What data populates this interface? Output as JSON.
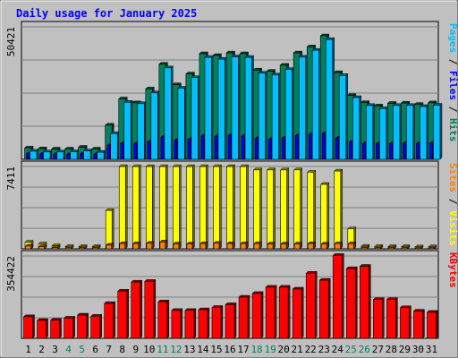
{
  "chart_data": {
    "type": "bar",
    "title": "Daily usage for January 2025",
    "categories": [
      "1",
      "2",
      "3",
      "4",
      "5",
      "6",
      "7",
      "8",
      "9",
      "10",
      "11",
      "12",
      "13",
      "14",
      "15",
      "16",
      "17",
      "18",
      "19",
      "20",
      "21",
      "22",
      "23",
      "24",
      "25",
      "26",
      "27",
      "28",
      "29",
      "30",
      "31"
    ],
    "weekend_days": [
      4,
      5,
      11,
      12,
      18,
      19,
      25,
      26
    ],
    "panels": [
      {
        "id": "hits-files-pages",
        "scale_label": "50421",
        "max": 50421,
        "legend": [
          {
            "text": "Hits",
            "color": "#00805c"
          },
          {
            "text": "Files",
            "color": "#0000ff"
          },
          {
            "text": "Pages",
            "color": "#00bfff"
          }
        ],
        "series": [
          {
            "name": "Hits",
            "color": "#00805c",
            "values": [
              4300,
              4000,
              3900,
              3900,
              4600,
              3900,
              13000,
              23000,
              21500,
              26800,
              36200,
              28400,
              32500,
              40200,
              39500,
              40500,
              40200,
              34000,
              33500,
              35800,
              40500,
              42800,
              47000,
              33000,
              24300,
              21600,
              20300,
              21300,
              21400,
              20900,
              21500
            ]
          },
          {
            "name": "Files",
            "color": "#0000ff",
            "values": [
              2100,
              1900,
              1800,
              1800,
              2000,
              1800,
              5200,
              6000,
              5900,
              6600,
              8400,
              7200,
              7600,
              8800,
              8600,
              9000,
              8800,
              7900,
              7600,
              8000,
              9000,
              9400,
              9800,
              8000,
              6500,
              6000,
              5900,
              6000,
              6100,
              6000,
              6100
            ]
          },
          {
            "name": "Pages",
            "color": "#00bfff",
            "values": [
              3100,
              2800,
              2800,
              2900,
              3200,
              2700,
              9800,
              21700,
              21200,
              25300,
              34800,
              27100,
              31100,
              38800,
              38100,
              39000,
              38800,
              32800,
              32100,
              34200,
              38900,
              41500,
              45600,
              31900,
              23500,
              20500,
              19300,
              20500,
              20500,
              20100,
              20600
            ]
          }
        ]
      },
      {
        "id": "visits-sites",
        "scale_label": "7411",
        "max": 7411,
        "legend": [
          {
            "text": "Visits",
            "color": "#ffff00"
          },
          {
            "text": "Sites",
            "color": "#ff8000"
          }
        ],
        "series": [
          {
            "name": "Visits",
            "color": "#ffff00",
            "values": [
              600,
              450,
              280,
              200,
              200,
              200,
              3450,
              7400,
              7400,
              7400,
              7400,
              7400,
              7400,
              7400,
              7400,
              7400,
              7400,
              7100,
              7100,
              7100,
              7100,
              6900,
              5800,
              7000,
              1800,
              230,
              210,
              200,
              200,
              170,
              180
            ]
          },
          {
            "name": "Sites",
            "color": "#ff8000",
            "values": [
              250,
              200,
              120,
              90,
              90,
              90,
              330,
              470,
              470,
              500,
              620,
              440,
              440,
              470,
              500,
              470,
              470,
              470,
              440,
              440,
              440,
              470,
              430,
              470,
              460,
              100,
              90,
              90,
              90,
              70,
              80
            ]
          }
        ]
      },
      {
        "id": "kbytes",
        "scale_label": "354422",
        "max": 354422,
        "legend": [
          {
            "text": "KBytes",
            "color": "#ff0000"
          }
        ],
        "series": [
          {
            "name": "KBytes",
            "color": "#ff0000",
            "values": [
              93000,
              77000,
              78000,
              87000,
              100000,
              95000,
              150000,
              203000,
              242000,
              245000,
              157000,
              120000,
              120000,
              123000,
              133000,
              145000,
              177000,
              193000,
              220000,
              220000,
              212000,
              280000,
              250000,
              357000,
              300000,
              310000,
              167000,
              167000,
              132000,
              117000,
              112000
            ]
          }
        ]
      }
    ]
  }
}
